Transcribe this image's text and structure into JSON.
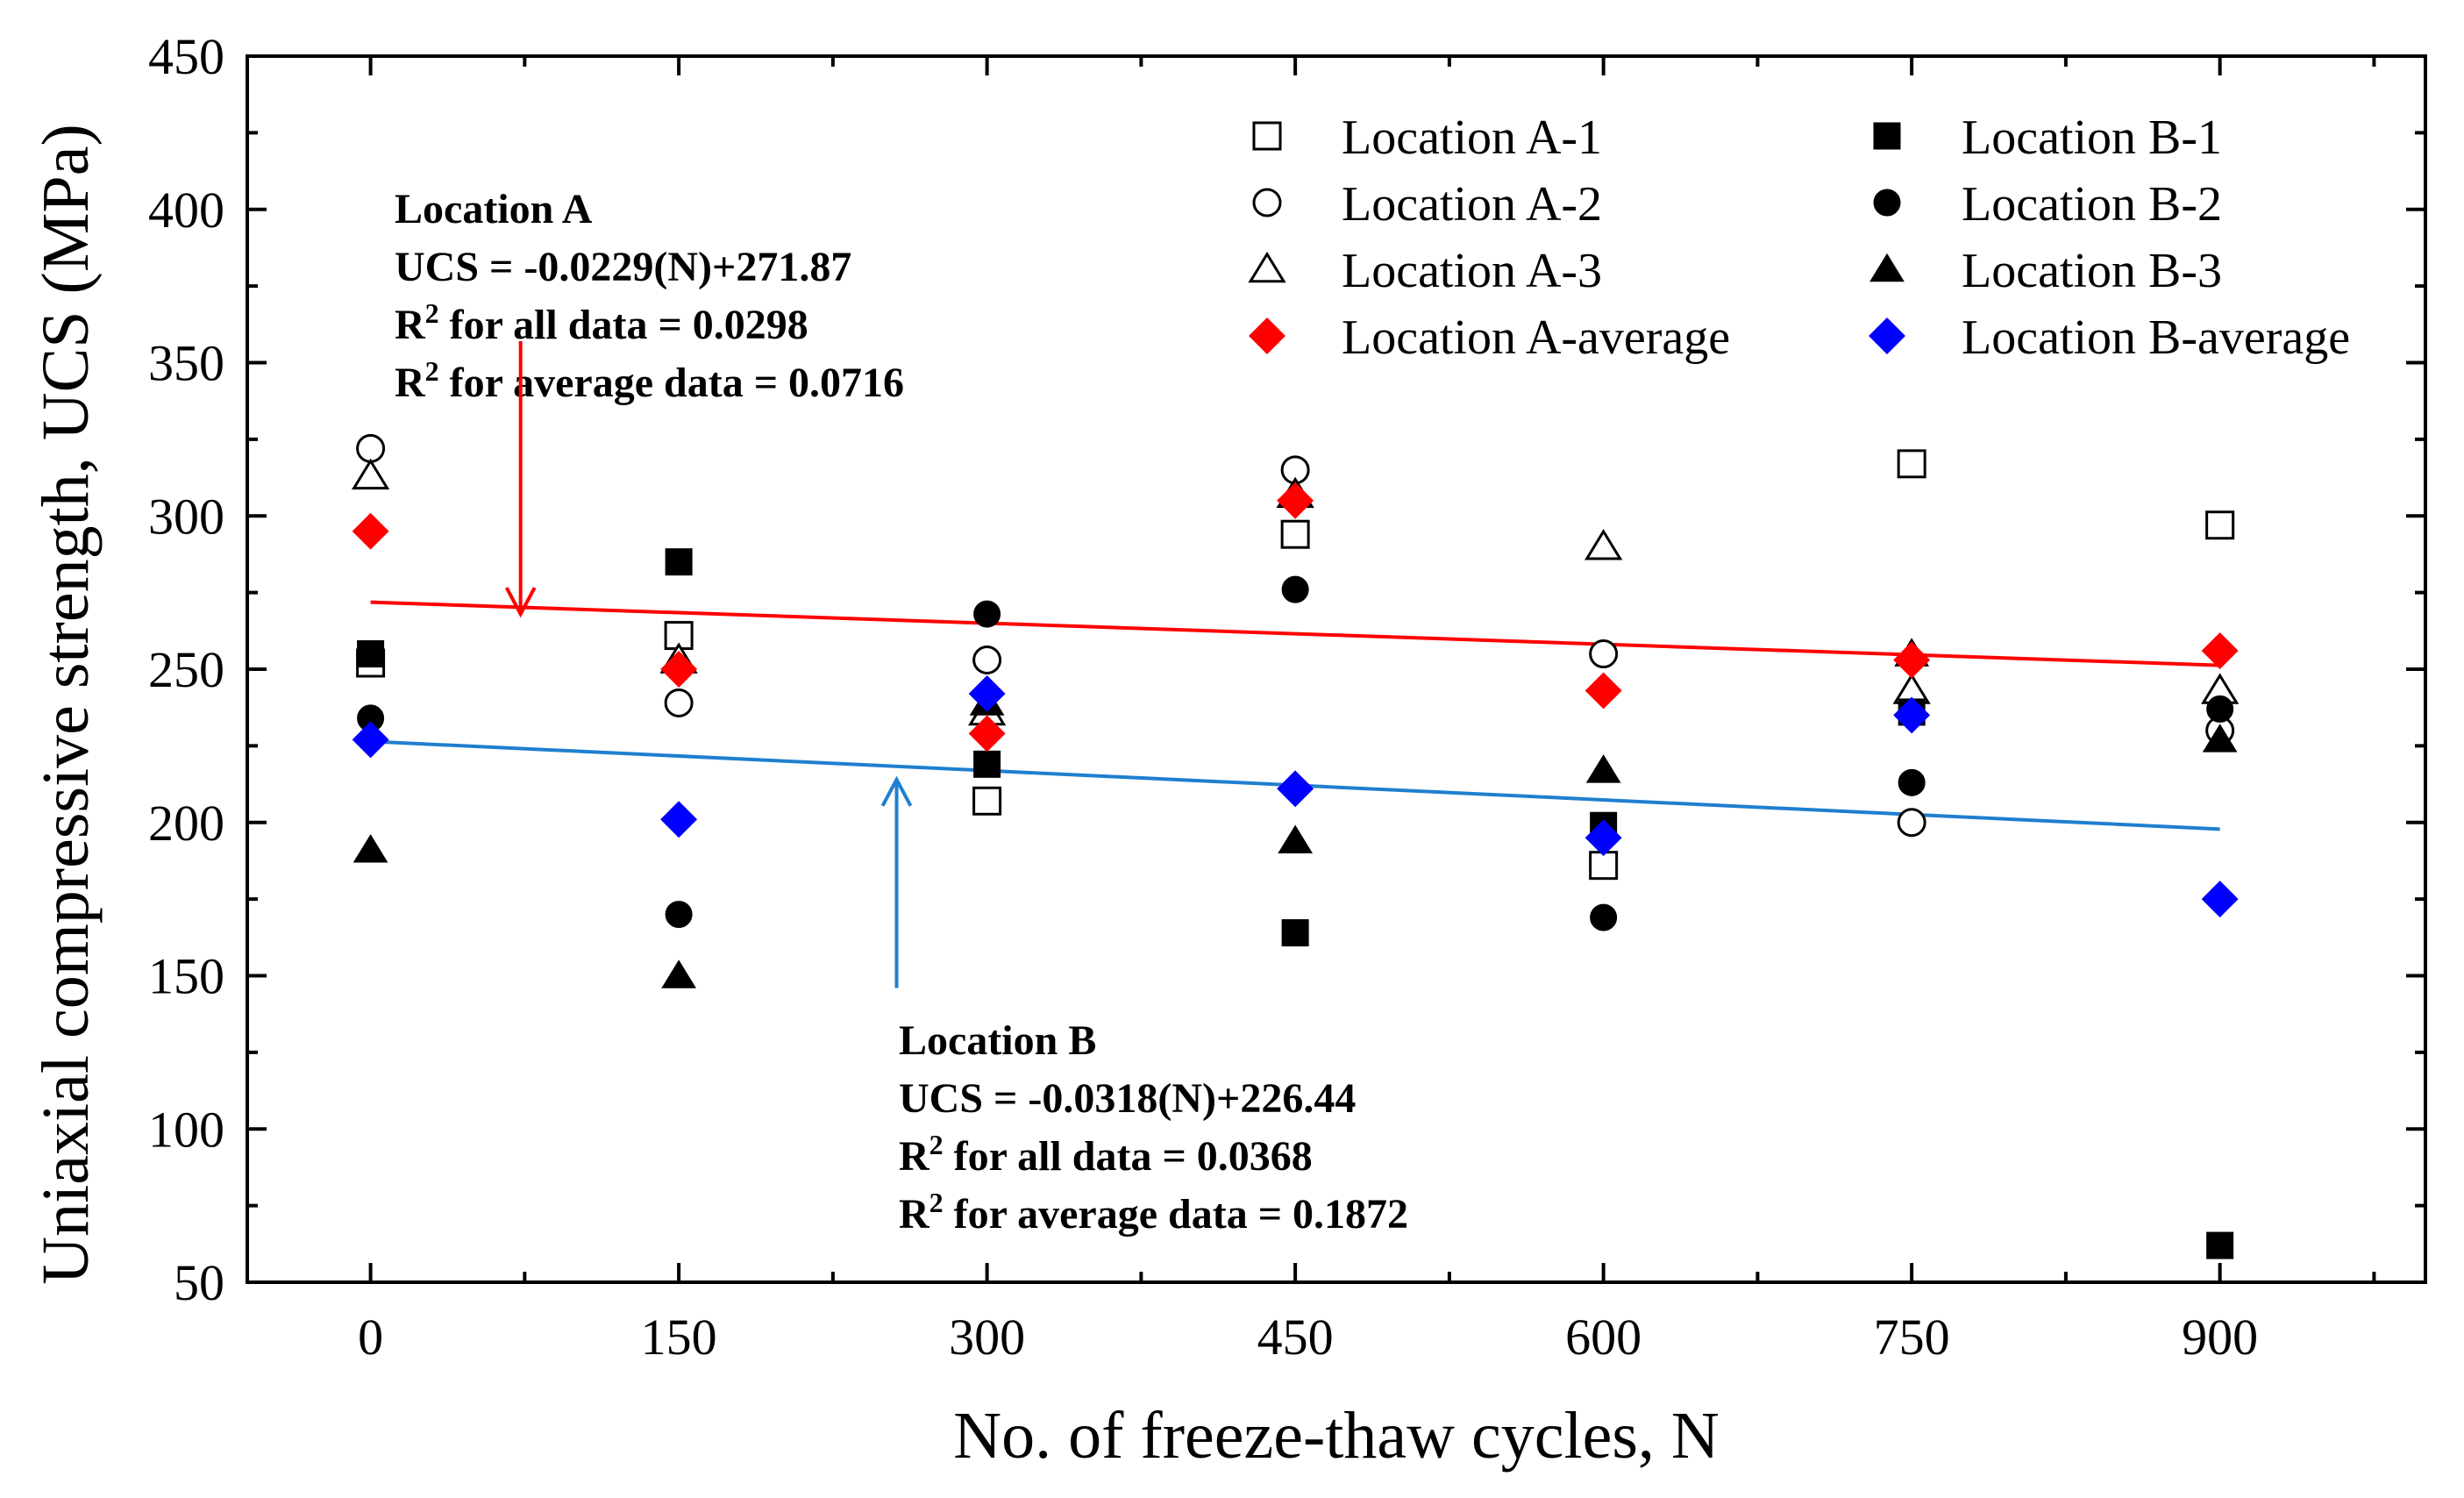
{
  "chart_data": {
    "type": "scatter",
    "xlabel": "No. of freeze-thaw cycles, N",
    "ylabel": "Uniaxial compressive strength, UCS (MPa)",
    "xlim": [
      -60,
      1000
    ],
    "ylim": [
      50,
      450
    ],
    "x_ticks": [
      0,
      150,
      300,
      450,
      600,
      750,
      900
    ],
    "x_tick_labels": [
      "0",
      "150",
      "300",
      "450",
      "600",
      "750",
      "900"
    ],
    "y_ticks": [
      50,
      100,
      150,
      200,
      250,
      300,
      350,
      400,
      450
    ],
    "y_tick_labels": [
      "50",
      "100",
      "150",
      "200",
      "250",
      "300",
      "350",
      "400",
      "450"
    ],
    "grid": false,
    "legend_position": "top-right",
    "series": [
      {
        "name": "Location A-1",
        "marker": "square-open",
        "color": "#000000",
        "points": [
          [
            0,
            252
          ],
          [
            150,
            261
          ],
          [
            300,
            207
          ],
          [
            450,
            294
          ],
          [
            600,
            186
          ],
          [
            750,
            317
          ],
          [
            900,
            297
          ]
        ]
      },
      {
        "name": "Location A-2",
        "marker": "circle-open",
        "color": "#000000",
        "points": [
          [
            0,
            322
          ],
          [
            150,
            239
          ],
          [
            300,
            253
          ],
          [
            450,
            315
          ],
          [
            600,
            255
          ],
          [
            750,
            200
          ],
          [
            900,
            230
          ]
        ]
      },
      {
        "name": "Location A-3",
        "marker": "triangle-open",
        "color": "#000000",
        "points": [
          [
            0,
            313
          ],
          [
            150,
            253
          ],
          [
            300,
            236
          ],
          [
            450,
            307
          ],
          [
            600,
            290
          ],
          [
            750,
            243
          ],
          [
            900,
            243
          ]
        ]
      },
      {
        "name": "Location A-average",
        "marker": "diamond-filled",
        "color": "#ff0000",
        "points": [
          [
            0,
            295
          ],
          [
            150,
            250
          ],
          [
            300,
            229
          ],
          [
            450,
            305
          ],
          [
            600,
            243
          ],
          [
            750,
            253
          ],
          [
            900,
            256
          ]
        ]
      },
      {
        "name": "Location B-1",
        "marker": "square-filled",
        "color": "#000000",
        "points": [
          [
            0,
            255
          ],
          [
            150,
            285
          ],
          [
            300,
            219
          ],
          [
            450,
            164
          ],
          [
            600,
            199
          ],
          [
            750,
            236
          ],
          [
            900,
            62
          ]
        ]
      },
      {
        "name": "Location B-2",
        "marker": "circle-filled",
        "color": "#000000",
        "points": [
          [
            0,
            234
          ],
          [
            150,
            170
          ],
          [
            300,
            268
          ],
          [
            450,
            276
          ],
          [
            600,
            169
          ],
          [
            750,
            213
          ],
          [
            900,
            237
          ]
        ]
      },
      {
        "name": "Location B-3",
        "marker": "triangle-filled",
        "color": "#000000",
        "points": [
          [
            0,
            191
          ],
          [
            150,
            150
          ],
          [
            300,
            239
          ],
          [
            450,
            194
          ],
          [
            600,
            217
          ],
          [
            750,
            255
          ],
          [
            900,
            227
          ]
        ]
      },
      {
        "name": "Location B-average",
        "marker": "diamond-filled",
        "color": "#0000ff",
        "points": [
          [
            0,
            227
          ],
          [
            150,
            201
          ],
          [
            300,
            242
          ],
          [
            450,
            211
          ],
          [
            600,
            195
          ],
          [
            750,
            235
          ],
          [
            900,
            175
          ]
        ]
      }
    ],
    "fit_lines": [
      {
        "id": "A",
        "color": "#ff0000",
        "slope": -0.0229,
        "intercept": 271.87,
        "x_range": [
          0,
          900
        ]
      },
      {
        "id": "B",
        "color": "#1f7fcf",
        "slope": -0.0318,
        "intercept": 226.44,
        "x_range": [
          0,
          900
        ]
      }
    ],
    "annotations": {
      "location_a": {
        "color": "#ff0000",
        "arrow_from": [
          73,
          357
        ],
        "arrow_to": [
          73,
          268
        ],
        "lines": [
          {
            "main": "Location A"
          },
          {
            "main": "UCS = -0.0229(N)+271.87"
          },
          {
            "main": "R",
            "sup": "2",
            "rest": " for all data = 0.0298"
          },
          {
            "main": "R",
            "sup": "2",
            "rest": " for average data = 0.0716"
          }
        ]
      },
      "location_b": {
        "color": "#1f7fcf",
        "arrow_from": [
          256,
          146
        ],
        "arrow_to": [
          256,
          214
        ],
        "lines": [
          {
            "main": "Location B"
          },
          {
            "main": "UCS = -0.0318(N)+226.44"
          },
          {
            "main": "R",
            "sup": "2",
            "rest": " for all data = 0.0368"
          },
          {
            "main": "R",
            "sup": "2",
            "rest": " for average data = 0.1872"
          }
        ]
      }
    }
  }
}
